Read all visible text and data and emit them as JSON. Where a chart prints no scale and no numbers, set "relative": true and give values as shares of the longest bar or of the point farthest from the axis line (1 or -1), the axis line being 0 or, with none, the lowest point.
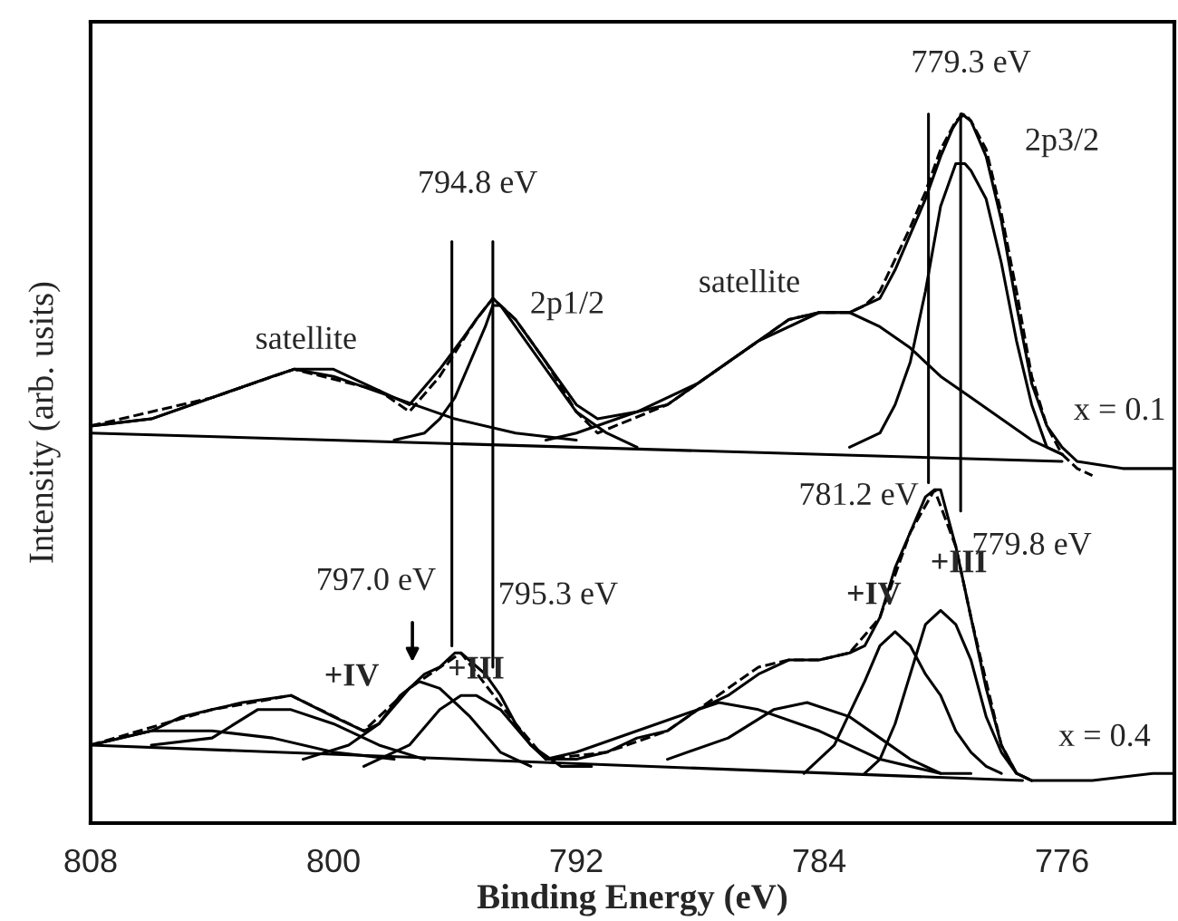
{
  "chart_data": {
    "type": "line",
    "relative": true,
    "xlabel": "Binding Energy (eV)",
    "ylabel": "Intensity (arb. usits)",
    "xlim": [
      808,
      772.3
    ],
    "xticks": [
      808,
      800,
      792,
      784,
      776
    ],
    "grid": false,
    "legend": false,
    "line_style": "solid",
    "marker": "none",
    "series": [
      {
        "color": "#000000",
        "x": [
          808,
          806,
          804,
          802,
          801.3,
          800,
          798.5,
          797.5,
          796.5,
          795.8,
          795.3,
          794.75,
          794,
          793,
          792,
          791.3,
          790,
          789,
          788,
          787,
          786,
          785,
          784,
          783,
          782.5,
          782,
          781.5,
          781,
          780.5,
          780,
          779.6,
          779.3,
          779,
          778.5,
          778,
          777.5,
          777,
          776.5,
          776,
          775.5,
          774,
          773,
          772.3
        ],
        "values": [
          0.56,
          0.57,
          0.6,
          0.63,
          0.64,
          0.64,
          0.61,
          0.59,
          0.64,
          0.68,
          0.71,
          0.74,
          0.71,
          0.65,
          0.59,
          0.57,
          0.58,
          0.59,
          0.62,
          0.65,
          0.68,
          0.71,
          0.72,
          0.72,
          0.73,
          0.74,
          0.78,
          0.83,
          0.88,
          0.94,
          0.98,
          1.0,
          0.99,
          0.94,
          0.85,
          0.73,
          0.62,
          0.56,
          0.53,
          0.51,
          0.5,
          0.5,
          0.5
        ]
      },
      {
        "color": "#000000",
        "line_style": "dashed",
        "x": [
          808,
          804,
          801.3,
          798.5,
          797.5,
          796.5,
          795.3,
          794.75,
          794,
          793,
          792,
          791.3,
          789,
          787,
          785,
          784,
          783,
          782.5,
          782,
          781,
          780.5,
          780,
          779.5,
          779.2,
          779,
          778.5,
          778,
          777.5,
          777,
          776.5,
          776,
          775.5,
          775
        ],
        "values": [
          0.56,
          0.6,
          0.64,
          0.61,
          0.58,
          0.63,
          0.71,
          0.74,
          0.71,
          0.65,
          0.58,
          0.55,
          0.59,
          0.65,
          0.71,
          0.72,
          0.72,
          0.73,
          0.75,
          0.84,
          0.89,
          0.95,
          0.99,
          1.0,
          0.99,
          0.95,
          0.86,
          0.75,
          0.63,
          0.56,
          0.52,
          0.5,
          0.49
        ]
      },
      {
        "color": "#000000",
        "x": [
          808,
          776
        ],
        "values": [
          0.55,
          0.51
        ]
      },
      {
        "color": "#000000",
        "x": [
          808,
          806,
          804,
          802,
          801.3,
          800,
          798,
          796,
          794,
          792
        ],
        "values": [
          0.56,
          0.57,
          0.6,
          0.63,
          0.64,
          0.63,
          0.6,
          0.57,
          0.55,
          0.54
        ]
      },
      {
        "color": "#000000",
        "x": [
          798,
          797,
          796.5,
          796,
          795.5,
          795,
          794.75,
          794.5,
          794,
          793,
          792,
          791,
          790
        ],
        "values": [
          0.54,
          0.55,
          0.57,
          0.6,
          0.65,
          0.7,
          0.73,
          0.73,
          0.7,
          0.64,
          0.58,
          0.55,
          0.53
        ]
      },
      {
        "color": "#000000",
        "x": [
          793,
          792,
          790,
          788,
          786,
          784,
          783,
          782,
          781,
          780,
          779,
          778,
          777,
          776
        ],
        "values": [
          0.54,
          0.55,
          0.58,
          0.62,
          0.68,
          0.72,
          0.72,
          0.7,
          0.67,
          0.63,
          0.6,
          0.57,
          0.54,
          0.52
        ]
      },
      {
        "color": "#000000",
        "x": [
          783,
          782,
          781.5,
          781,
          780.5,
          780,
          779.5,
          779.2,
          779,
          778.5,
          778,
          777.5,
          777,
          776.5,
          776
        ],
        "values": [
          0.53,
          0.55,
          0.59,
          0.65,
          0.75,
          0.87,
          0.93,
          0.93,
          0.92,
          0.88,
          0.79,
          0.68,
          0.59,
          0.53,
          0.52
        ]
      },
      {
        "color": "#000000",
        "x": [
          808,
          807,
          806,
          805,
          804,
          803,
          801.4,
          800,
          799,
          798.5,
          797.5,
          797,
          796.5,
          796,
          795.8,
          795,
          794.5,
          794,
          793.5,
          793,
          792,
          791,
          790,
          789,
          788,
          787,
          786,
          785,
          784,
          783,
          782.5,
          782,
          781.5,
          781,
          780.5,
          780.2,
          780,
          779.5,
          779,
          778.5,
          778,
          777.5,
          777,
          775,
          773,
          772.3
        ],
        "values": [
          0.11,
          0.12,
          0.13,
          0.15,
          0.16,
          0.17,
          0.18,
          0.15,
          0.13,
          0.14,
          0.19,
          0.21,
          0.22,
          0.24,
          0.24,
          0.21,
          0.18,
          0.14,
          0.11,
          0.09,
          0.09,
          0.1,
          0.12,
          0.13,
          0.16,
          0.18,
          0.21,
          0.23,
          0.23,
          0.24,
          0.25,
          0.29,
          0.36,
          0.41,
          0.46,
          0.47,
          0.47,
          0.39,
          0.29,
          0.19,
          0.11,
          0.07,
          0.06,
          0.06,
          0.07,
          0.07
        ]
      },
      {
        "color": "#000000",
        "line_style": "dashed",
        "x": [
          808,
          804,
          801.4,
          799,
          797.5,
          795.8,
          794,
          793,
          791,
          789,
          787,
          786,
          785,
          784,
          783,
          782,
          781,
          780.2,
          779.5,
          779,
          778,
          777.5,
          777
        ],
        "values": [
          0.11,
          0.16,
          0.18,
          0.13,
          0.19,
          0.24,
          0.14,
          0.09,
          0.1,
          0.13,
          0.19,
          0.22,
          0.23,
          0.23,
          0.24,
          0.29,
          0.41,
          0.47,
          0.39,
          0.29,
          0.11,
          0.07,
          0.06
        ]
      },
      {
        "color": "#000000",
        "x": [
          808,
          777.3
        ],
        "values": [
          0.11,
          0.06
        ]
      },
      {
        "color": "#000000",
        "x": [
          808,
          806,
          805,
          804,
          802,
          800,
          798
        ],
        "values": [
          0.11,
          0.13,
          0.13,
          0.13,
          0.12,
          0.1,
          0.09
        ]
      },
      {
        "color": "#000000",
        "x": [
          806,
          804,
          802.5,
          801.4,
          800,
          798.5,
          797
        ],
        "values": [
          0.11,
          0.12,
          0.16,
          0.16,
          0.14,
          0.11,
          0.09
        ]
      },
      {
        "color": "#000000",
        "x": [
          801,
          799.5,
          798.5,
          797.8,
          797.2,
          796.5,
          795.5,
          794.5,
          793.5
        ],
        "values": [
          0.09,
          0.11,
          0.14,
          0.18,
          0.2,
          0.19,
          0.15,
          0.1,
          0.08
        ]
      },
      {
        "color": "#000000",
        "x": [
          799,
          797.5,
          796.5,
          795.8,
          795.3,
          794.5,
          793.5,
          792.5,
          791.5
        ],
        "values": [
          0.08,
          0.11,
          0.16,
          0.18,
          0.18,
          0.16,
          0.11,
          0.08,
          0.08
        ]
      },
      {
        "color": "#000000",
        "x": [
          793,
          792,
          790,
          788,
          787.3,
          786,
          784,
          782,
          780
        ],
        "values": [
          0.09,
          0.1,
          0.13,
          0.16,
          0.17,
          0.16,
          0.13,
          0.09,
          0.07
        ]
      },
      {
        "color": "#000000",
        "x": [
          789,
          787,
          785.5,
          784.4,
          783,
          782,
          781,
          780,
          779
        ],
        "values": [
          0.09,
          0.12,
          0.16,
          0.17,
          0.15,
          0.12,
          0.09,
          0.07,
          0.07
        ]
      },
      {
        "color": "#000000",
        "x": [
          784.5,
          783.5,
          782.5,
          782,
          781.5,
          781,
          780.5,
          780,
          779.5,
          779,
          778.5,
          778
        ],
        "values": [
          0.07,
          0.11,
          0.2,
          0.25,
          0.27,
          0.25,
          0.21,
          0.18,
          0.13,
          0.1,
          0.08,
          0.07
        ]
      },
      {
        "color": "#000000",
        "x": [
          782.5,
          782,
          781.5,
          781,
          780.5,
          780,
          779.5,
          779,
          778.5,
          778,
          777.5,
          777
        ],
        "values": [
          0.07,
          0.09,
          0.14,
          0.21,
          0.28,
          0.3,
          0.28,
          0.23,
          0.15,
          0.1,
          0.07,
          0.06
        ]
      },
      {
        "color": "#000000",
        "x": [
          796.1,
          796.1
        ],
        "values": [
          0.82,
          0.25
        ]
      },
      {
        "color": "#000000",
        "x": [
          794.75,
          794.75
        ],
        "values": [
          0.82,
          0.22
        ]
      },
      {
        "color": "#000000",
        "x": [
          780.4,
          780.4
        ],
        "values": [
          1.0,
          0.48
        ]
      },
      {
        "color": "#000000",
        "x": [
          779.34,
          779.34
        ],
        "values": [
          1.0,
          0.44
        ]
      }
    ],
    "annotations": [
      "794.8 eV",
      "2p1/2",
      "satellite",
      "satellite",
      "779.3 eV",
      "2p3/2",
      "x = 0.1",
      "781.2 eV",
      "779.8 eV",
      "+III",
      "+IV",
      "+III",
      "+IV",
      "x = 0.4",
      "795.3 eV",
      "797.0 eV"
    ]
  }
}
